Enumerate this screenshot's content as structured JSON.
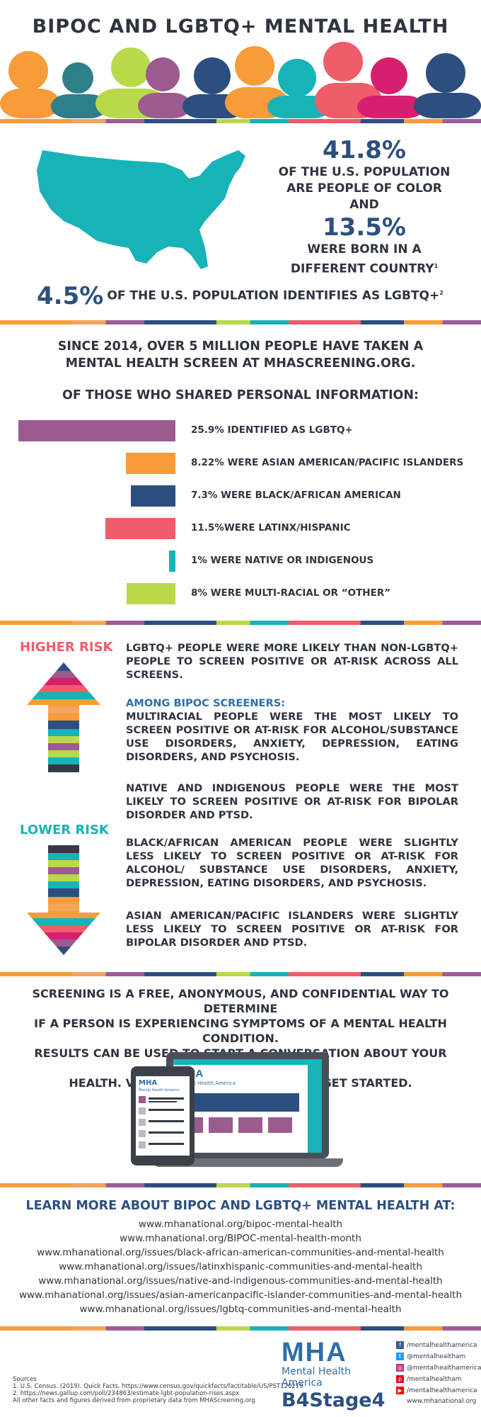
{
  "header": {
    "title": "BIPOC AND LGBTQ+ MENTAL HEALTH"
  },
  "population": {
    "stat1_value": "41.8%",
    "stat1_line1": "OF THE U.S. POPULATION",
    "stat1_line2": "ARE PEOPLE OF COLOR",
    "and": "AND",
    "stat2_value": "13.5%",
    "stat2_line1": "WERE BORN IN A",
    "stat2_line2": "DIFFERENT COUNTRY",
    "stat2_sup": "1",
    "stat3_value": "4.5%",
    "stat3_text": "OF THE U.S. POPULATION IDENTIFIES AS LGBTQ+",
    "stat3_sup": "2"
  },
  "screening": {
    "intro_line1": "SINCE 2014, OVER 5 MILLION PEOPLE HAVE TAKEN A",
    "intro_line2": "MENTAL HEALTH SCREEN AT MHASCREENING.ORG.",
    "subhead": "OF THOSE WHO SHARED PERSONAL INFORMATION:"
  },
  "chart_data": {
    "type": "bar",
    "categories": [
      "25.9% IDENTIFIED AS LGBTQ+",
      "8.22% WERE ASIAN AMERICAN/PACIFIC ISLANDERS",
      "7.3% WERE BLACK/AFRICAN AMERICAN",
      "11.5%WERE LATINX/HISPANIC",
      "1% WERE NATIVE OR INDIGENOUS",
      "8% WERE MULTI-RACIAL OR “OTHER”"
    ],
    "values": [
      25.9,
      8.22,
      7.3,
      11.5,
      1,
      8
    ],
    "colors": [
      "#9c5b8f",
      "#f89b3a",
      "#2d4f80",
      "#ef5c6a",
      "#17b3b6",
      "#b9d94a"
    ],
    "orientation": "horizontal",
    "bar_alignment": "right"
  },
  "risk": {
    "higher_label": "HIGHER RISK",
    "lower_label": "LOWER RISK",
    "higher_color": "#ef5c6a",
    "lower_color": "#17b3b6",
    "p1": "LGBTQ+ PEOPLE WERE MORE LIKELY THAN NON-LGBTQ+ PEOPLE TO SCREEN POSITIVE OR AT-RISK ACROSS ALL SCREENS.",
    "p2_head": "AMONG BIPOC SCREENERS:",
    "p2": "MULTIRACIAL PEOPLE WERE THE MOST LIKELY TO SCREEN POSITIVE OR AT-RISK FOR ALCOHOL/SUBSTANCE USE DISORDERS, ANXIETY, DEPRESSION, EATING DISORDERS, AND PSYCHOSIS.",
    "p3": "NATIVE AND INDIGENOUS PEOPLE WERE THE MOST LIKELY TO SCREEN POSITIVE OR AT-RISK FOR BIPOLAR DISORDER AND PTSD.",
    "p4": "BLACK/AFRICAN AMERICAN PEOPLE WERE SLIGHTLY LESS LIKELY TO SCREEN POSITIVE OR AT-RISK FOR ALCOHOL/ SUBSTANCE USE DISORDERS, ANXIETY, DEPRESSION, EATING DISORDERS, AND PSYCHOSIS.",
    "p5": "ASIAN AMERICAN/PACIFIC ISLANDERS WERE SLIGHTLY LESS LIKELY TO SCREEN POSITIVE OR AT-RISK FOR BIPOLAR DISORDER AND PTSD."
  },
  "cta": {
    "line1": "SCREENING IS A FREE, ANONYMOUS, AND CONFIDENTIAL WAY TO DETERMINE",
    "line2": "IF A PERSON IS EXPERIENCING SYMPTOMS OF A MENTAL HEALTH CONDITION.",
    "line3": "RESULTS CAN BE USED TO START A CONVERSATION ABOUT YOUR MENTAL",
    "line4": "HEALTH. VISIT MHASCREENING.ORG TO GET STARTED.",
    "device_logo": "MHA",
    "device_logo_sub": "Mental Health America"
  },
  "learn_more": {
    "title": "LEARN MORE ABOUT BIPOC AND LGBTQ+ MENTAL HEALTH AT:",
    "links": [
      "www.mhanational.org/bipoc-mental-health",
      "www.mhanational.org/BIPOC-mental-health-month",
      "www.mhanational.org/issues/black-african-american-communities-and-mental-health",
      "www.mhanational.org/issues/latinxhispanic-communities-and-mental-health",
      "www.mhanational.org/issues/native-and-indigenous-communities-and-mental-health",
      "www.mhanational.org/issues/asian-americanpacific-islander-communities-and-mental-health",
      "www.mhanational.org/issues/lgbtq-communities-and-mental-health"
    ]
  },
  "footer": {
    "logo": "MHA",
    "logo_sub": "Mental Health America",
    "campaign": "B4Stage4",
    "social": [
      {
        "icon": "facebook-icon",
        "text": "/mentalhealthamerica",
        "color": "#3b5998",
        "glyph": "f"
      },
      {
        "icon": "twitter-icon",
        "text": "@mentalhealtham",
        "color": "#1da1f2",
        "glyph": "t"
      },
      {
        "icon": "instagram-icon",
        "text": "@mentalhealthamerica",
        "color": "#c13584",
        "glyph": "◎"
      },
      {
        "icon": "pinterest-icon",
        "text": "/mentalhealtham",
        "color": "#e60023",
        "glyph": "p"
      },
      {
        "icon": "youtube-icon",
        "text": "/mentalhealthamerica",
        "color": "#ff0000",
        "glyph": "▶"
      },
      {
        "icon": "web-icon",
        "text": "www.mhanational.org",
        "color": "",
        "glyph": ""
      }
    ],
    "sources_title": "Sources",
    "source1": "1. U.S. Census. (2019). Quick Facts. https://www.census.gov/quickfacts/fact/table/US/PST120219",
    "source2": "2. https://news.gallup.com/poll/234863/estimate-lgbt-population-rises.aspx",
    "source3": "All other facts and figures derived from proprietary data from MHAScreening.org"
  }
}
